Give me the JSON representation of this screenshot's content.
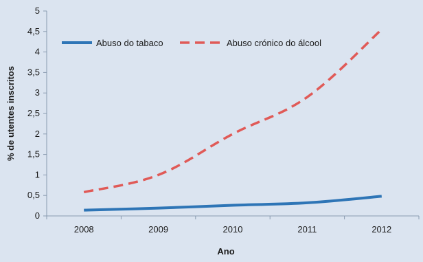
{
  "chart_data": {
    "type": "line",
    "x": [
      "2008",
      "2009",
      "2010",
      "2011",
      "2012"
    ],
    "series": [
      {
        "name": "Abuso do tabaco",
        "values": [
          0.14,
          0.19,
          0.26,
          0.32,
          0.48
        ],
        "color": "#2e75b6",
        "style": "solid"
      },
      {
        "name": "Abuso crónico do álcool",
        "values": [
          0.58,
          1.0,
          2.0,
          2.9,
          4.55
        ],
        "color": "#e05a57",
        "style": "dashed"
      }
    ],
    "yticks": [
      "0",
      "0,5",
      "1",
      "1,5",
      "2",
      "2,5",
      "3",
      "3,5",
      "4",
      "4,5",
      "5"
    ],
    "ylim": [
      0,
      5
    ],
    "xlabel": "Ano",
    "ylabel": "% de utentes inscritos",
    "grid": false,
    "legend": "top"
  },
  "colors": {
    "background": "#dbe4f0",
    "axis": "#8a9bb0"
  }
}
